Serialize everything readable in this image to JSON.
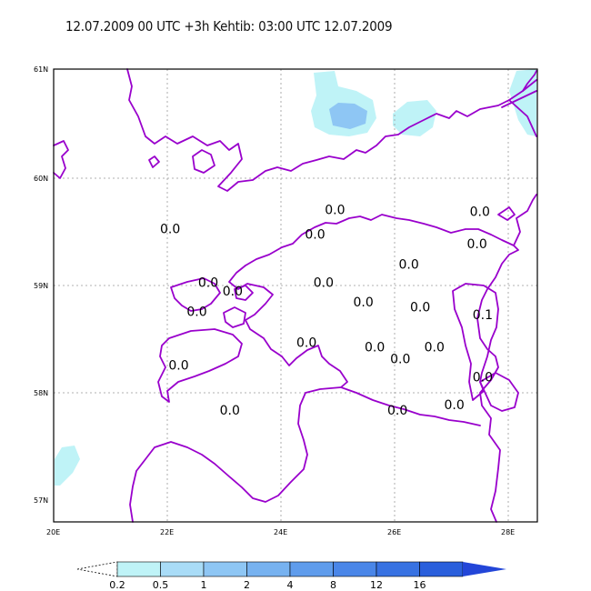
{
  "title": "12.07.2009 00 UTC +3h    Kehtib: 03:00 UTC 12.07.2009",
  "map": {
    "lat_labels": [
      "61N",
      "60N",
      "59N",
      "58N",
      "57N"
    ],
    "lon_labels": [
      "20E",
      "22E",
      "24E",
      "26E",
      "28E"
    ],
    "grid": true
  },
  "station_values": [
    {
      "label": "0.0",
      "lon": 22.05,
      "lat": 59.47
    },
    {
      "label": "0.0",
      "lon": 22.72,
      "lat": 58.97
    },
    {
      "label": "0.0",
      "lon": 23.15,
      "lat": 58.89
    },
    {
      "label": "0.0",
      "lon": 22.52,
      "lat": 58.7
    },
    {
      "label": "0.0",
      "lon": 24.95,
      "lat": 59.65
    },
    {
      "label": "0.0",
      "lon": 24.6,
      "lat": 59.42
    },
    {
      "label": "0.0",
      "lon": 24.75,
      "lat": 58.97
    },
    {
      "label": "0.0",
      "lon": 25.45,
      "lat": 58.79
    },
    {
      "label": "0.0",
      "lon": 26.25,
      "lat": 59.14
    },
    {
      "label": "0.0",
      "lon": 26.45,
      "lat": 58.74
    },
    {
      "label": "0.0",
      "lon": 24.45,
      "lat": 58.41
    },
    {
      "label": "0.0",
      "lon": 25.65,
      "lat": 58.37
    },
    {
      "label": "0.0",
      "lon": 26.7,
      "lat": 58.37
    },
    {
      "label": "0.0",
      "lon": 26.1,
      "lat": 58.26
    },
    {
      "label": "0.0",
      "lon": 22.2,
      "lat": 58.2
    },
    {
      "label": "0.0",
      "lon": 23.1,
      "lat": 57.78
    },
    {
      "label": "0.0",
      "lon": 26.05,
      "lat": 57.78
    },
    {
      "label": "0.0",
      "lon": 27.5,
      "lat": 59.63
    },
    {
      "label": "0.0",
      "lon": 27.45,
      "lat": 59.33
    },
    {
      "label": "0.1",
      "lon": 27.55,
      "lat": 58.67
    },
    {
      "label": "0.0",
      "lon": 27.55,
      "lat": 58.09
    },
    {
      "label": "0.0",
      "lon": 27.05,
      "lat": 57.83
    }
  ],
  "colorbar": {
    "labels": [
      "0.2",
      "0.5",
      "1",
      "2",
      "4",
      "8",
      "12",
      "16"
    ],
    "colors": [
      "#bff3f7",
      "#a9dcf7",
      "#8ec6f4",
      "#77b2f0",
      "#5f9cec",
      "#4a86e8",
      "#3872e2",
      "#2a5fdc"
    ],
    "first_color": "#ffffff",
    "last_color": "#2346d8"
  },
  "colors": {
    "coast": "#9900cc",
    "precip_light": "#bff3f7",
    "precip_medium": "#8ec6f4",
    "grid": "#999999"
  }
}
